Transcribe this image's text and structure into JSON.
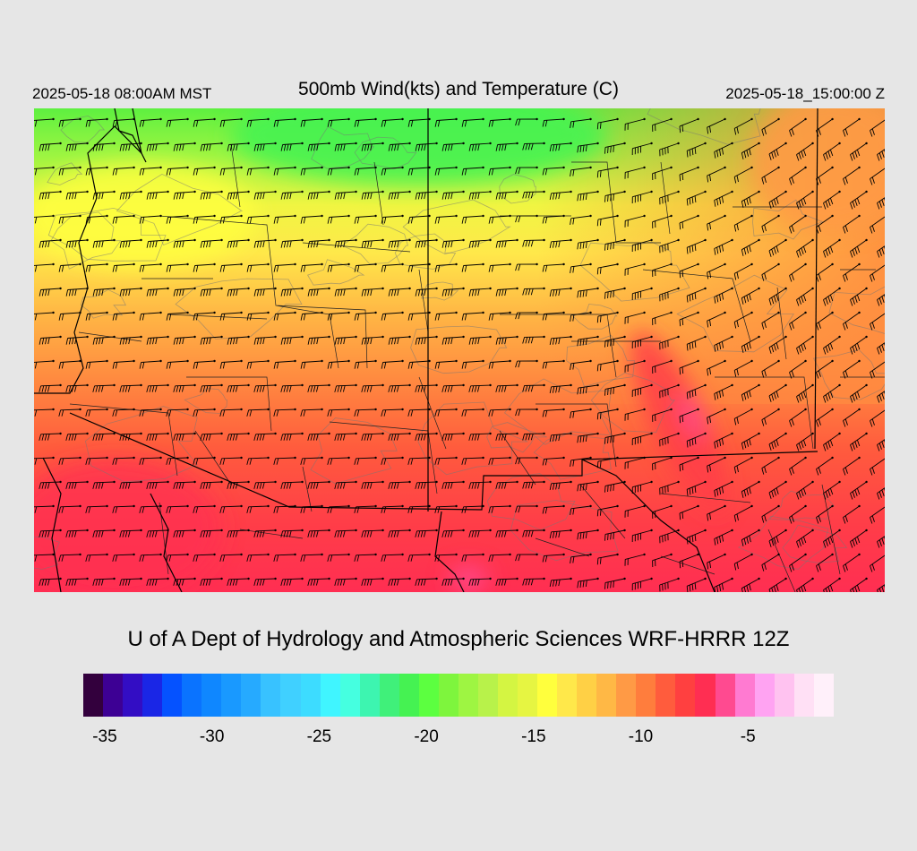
{
  "header": {
    "valid_local": "2025-05-18 08:00AM MST",
    "title": "500mb Wind(kts) and Temperature (C)",
    "valid_utc": "2025-05-18_15:00:00 Z"
  },
  "footer": {
    "credit": "U of A Dept of Hydrology and Atmospheric Sciences WRF-HRRR 12Z"
  },
  "colorbar": {
    "colors": [
      "#33003d",
      "#3d0094",
      "#330dc4",
      "#1a26e6",
      "#0552ff",
      "#0a73ff",
      "#0f87ff",
      "#1999ff",
      "#26aaff",
      "#38c2ff",
      "#40d0ff",
      "#3ddcff",
      "#40f5ff",
      "#45ffe0",
      "#3df5b0",
      "#40f07a",
      "#45f252",
      "#5cff40",
      "#7ef53d",
      "#9ef542",
      "#b8f24a",
      "#d4f542",
      "#e6f542",
      "#ffff3d",
      "#ffe84a",
      "#ffd045",
      "#ffb845",
      "#ff9a45",
      "#ff7d3d",
      "#ff5c3d",
      "#ff4040",
      "#ff2e52",
      "#ff4a90",
      "#ff7ad1",
      "#ffa3f2",
      "#ffc2f0",
      "#ffe0f5",
      "#fff0fa"
    ],
    "tick_labels": [
      {
        "label": "-35",
        "value": -35
      },
      {
        "label": "-30",
        "value": -30
      },
      {
        "label": "-25",
        "value": -25
      },
      {
        "label": "-20",
        "value": -20
      },
      {
        "label": "-15",
        "value": -15
      },
      {
        "label": "-10",
        "value": -10
      },
      {
        "label": "-5",
        "value": -5
      }
    ],
    "range": [
      -36,
      -1
    ],
    "units": "C"
  }
}
